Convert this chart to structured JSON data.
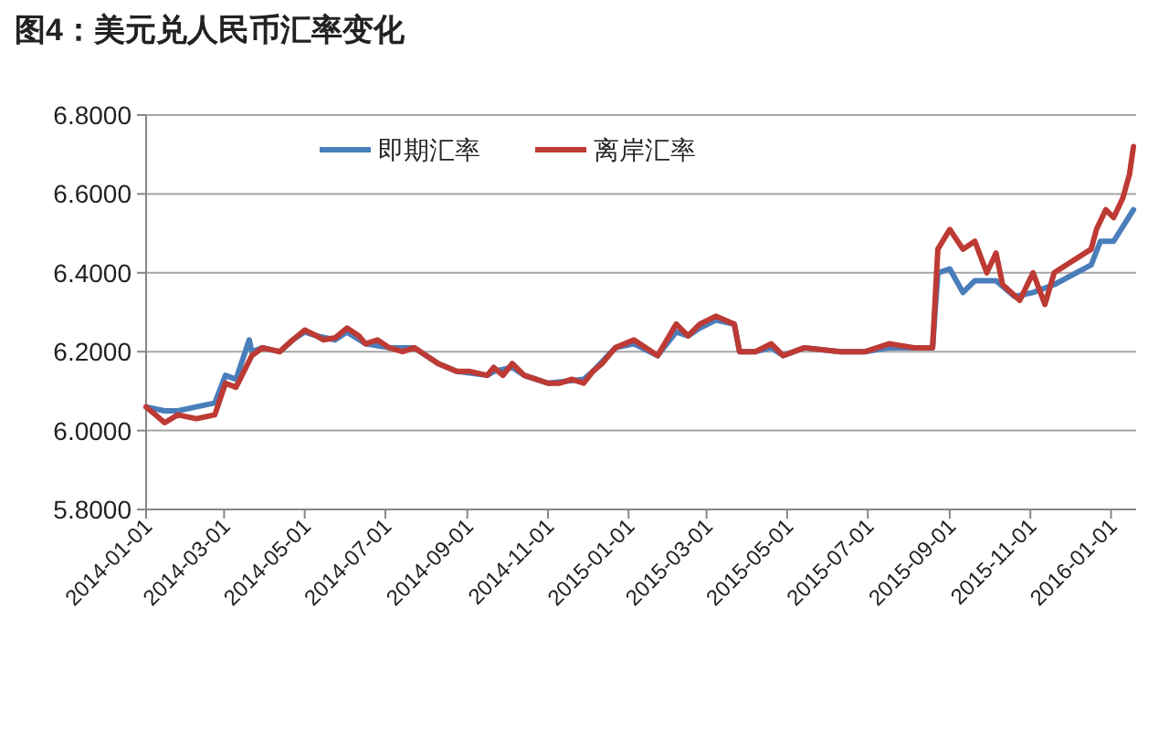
{
  "chart_data": {
    "type": "line",
    "title": "图4：美元兑人民币汇率变化",
    "xlim": [
      "2014-01-01",
      "2016-01-20"
    ],
    "xticks": [
      "2014-01-01",
      "2014-03-01",
      "2014-05-01",
      "2014-07-01",
      "2014-09-01",
      "2014-11-01",
      "2015-01-01",
      "2015-03-01",
      "2015-05-01",
      "2015-07-01",
      "2015-09-01",
      "2015-11-01",
      "2016-01-01"
    ],
    "ylim": [
      5.8,
      6.8
    ],
    "yticks": [
      {
        "value": 5.8,
        "label": "5.8000"
      },
      {
        "value": 6.0,
        "label": "6.0000"
      },
      {
        "value": 6.2,
        "label": "6.2000"
      },
      {
        "value": 6.4,
        "label": "6.4000"
      },
      {
        "value": 6.6,
        "label": "6.6000"
      },
      {
        "value": 6.8,
        "label": "6.8000"
      }
    ],
    "grid": "y",
    "legend": "top",
    "marker": "none",
    "line_style": "solid",
    "series": [
      {
        "name": "即期汇率",
        "color": "#4a7ebb",
        "x": [
          "2014-01-01",
          "2014-01-15",
          "2014-01-25",
          "2014-02-08",
          "2014-02-22",
          "2014-03-02",
          "2014-03-10",
          "2014-03-20",
          "2014-03-22",
          "2014-03-30",
          "2014-04-12",
          "2014-04-22",
          "2014-05-01",
          "2014-05-10",
          "2014-05-24",
          "2014-06-02",
          "2014-06-16",
          "2014-07-04",
          "2014-07-23",
          "2014-08-10",
          "2014-08-24",
          "2014-09-16",
          "2014-09-21",
          "2014-10-05",
          "2014-10-14",
          "2014-10-23",
          "2014-11-01",
          "2014-11-28",
          "2014-12-05",
          "2014-12-22",
          "2015-01-05",
          "2015-01-23",
          "2015-02-06",
          "2015-02-15",
          "2015-02-24",
          "2015-03-08",
          "2015-03-22",
          "2015-03-26",
          "2015-04-07",
          "2015-04-19",
          "2015-04-28",
          "2015-05-14",
          "2015-06-10",
          "2015-06-29",
          "2015-07-17",
          "2015-08-05",
          "2015-08-19",
          "2015-08-23",
          "2015-09-01",
          "2015-09-11",
          "2015-09-20",
          "2015-10-06",
          "2015-10-20",
          "2015-11-03",
          "2015-11-19",
          "2015-12-17",
          "2015-12-24",
          "2016-01-03",
          "2016-01-18"
        ],
        "values": [
          6.06,
          6.05,
          6.05,
          6.06,
          6.07,
          6.14,
          6.13,
          6.23,
          6.2,
          6.21,
          6.2,
          6.23,
          6.25,
          6.24,
          6.23,
          6.25,
          6.22,
          6.21,
          6.21,
          6.17,
          6.15,
          6.14,
          6.15,
          6.16,
          6.14,
          6.13,
          6.12,
          6.13,
          6.15,
          6.21,
          6.22,
          6.19,
          6.25,
          6.24,
          6.26,
          6.28,
          6.27,
          6.2,
          6.2,
          6.21,
          6.19,
          6.21,
          6.2,
          6.2,
          6.21,
          6.21,
          6.21,
          6.4,
          6.41,
          6.35,
          6.38,
          6.38,
          6.34,
          6.35,
          6.37,
          6.42,
          6.48,
          6.48,
          6.56
        ]
      },
      {
        "name": "离岸汇率",
        "color": "#be3a34",
        "x": [
          "2014-01-01",
          "2014-01-08",
          "2014-01-15",
          "2014-01-25",
          "2014-02-08",
          "2014-02-22",
          "2014-03-02",
          "2014-03-10",
          "2014-03-22",
          "2014-03-30",
          "2014-04-12",
          "2014-04-22",
          "2014-05-01",
          "2014-05-10",
          "2014-05-15",
          "2014-05-24",
          "2014-06-02",
          "2014-06-11",
          "2014-06-16",
          "2014-06-25",
          "2014-07-04",
          "2014-07-14",
          "2014-07-23",
          "2014-08-01",
          "2014-08-10",
          "2014-08-24",
          "2014-09-03",
          "2014-09-16",
          "2014-09-21",
          "2014-09-28",
          "2014-10-05",
          "2014-10-14",
          "2014-10-23",
          "2014-11-01",
          "2014-11-10",
          "2014-11-19",
          "2014-11-28",
          "2014-12-05",
          "2014-12-12",
          "2014-12-22",
          "2015-01-05",
          "2015-01-23",
          "2015-02-06",
          "2015-02-15",
          "2015-02-24",
          "2015-03-08",
          "2015-03-22",
          "2015-03-26",
          "2015-04-07",
          "2015-04-19",
          "2015-04-28",
          "2015-05-14",
          "2015-06-10",
          "2015-06-29",
          "2015-07-17",
          "2015-08-05",
          "2015-08-19",
          "2015-08-23",
          "2015-09-01",
          "2015-09-11",
          "2015-09-20",
          "2015-09-29",
          "2015-10-06",
          "2015-10-11",
          "2015-10-24",
          "2015-11-03",
          "2015-11-12",
          "2015-11-19",
          "2015-12-03",
          "2015-12-17",
          "2015-12-21",
          "2015-12-28",
          "2016-01-03",
          "2016-01-10",
          "2016-01-15",
          "2016-01-18"
        ],
        "values": [
          6.06,
          6.04,
          6.02,
          6.04,
          6.03,
          6.04,
          6.12,
          6.11,
          6.19,
          6.21,
          6.2,
          6.23,
          6.255,
          6.24,
          6.23,
          6.235,
          6.26,
          6.24,
          6.22,
          6.23,
          6.21,
          6.2,
          6.21,
          6.19,
          6.17,
          6.15,
          6.15,
          6.14,
          6.16,
          6.14,
          6.17,
          6.14,
          6.13,
          6.12,
          6.12,
          6.13,
          6.12,
          6.15,
          6.17,
          6.21,
          6.23,
          6.19,
          6.27,
          6.24,
          6.27,
          6.29,
          6.27,
          6.2,
          6.2,
          6.22,
          6.19,
          6.21,
          6.2,
          6.2,
          6.22,
          6.21,
          6.21,
          6.46,
          6.51,
          6.46,
          6.48,
          6.4,
          6.45,
          6.37,
          6.33,
          6.4,
          6.32,
          6.4,
          6.43,
          6.46,
          6.51,
          6.56,
          6.54,
          6.59,
          6.65,
          6.72
        ]
      }
    ]
  }
}
